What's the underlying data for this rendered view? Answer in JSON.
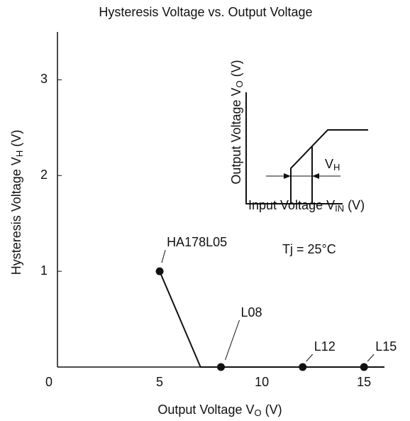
{
  "chart_data": {
    "type": "line",
    "title": "Hysteresis Voltage vs. Output Voltage",
    "x_label": [
      "Output Voltage  V",
      "O",
      "  (V)"
    ],
    "y_label": [
      "Hysteresis Voltage  V",
      "H",
      "  (V)"
    ],
    "x": [
      5,
      7,
      8,
      12,
      15,
      16
    ],
    "series": [
      {
        "color": "#111111",
        "values": [
          1,
          0,
          0,
          0,
          0,
          0
        ]
      }
    ],
    "points": [
      {
        "x": 5,
        "y": 1,
        "label": "HA178L05"
      },
      {
        "x": 8,
        "y": 0,
        "label": "L08"
      },
      {
        "x": 12,
        "y": 0,
        "label": "L12"
      },
      {
        "x": 15,
        "y": 0,
        "label": "L15"
      }
    ],
    "xlim": [
      0,
      16
    ],
    "xticks": [
      0,
      5,
      10,
      15
    ],
    "ylim": [
      0,
      3.5
    ],
    "yticks": [
      1,
      2,
      3
    ],
    "annotation": "Tj = 25°C",
    "inset": {
      "y_label": [
        "Output Voltage V",
        "O",
        " (V)"
      ],
      "x_label": [
        "Input Voltage V",
        "IN",
        " (V)"
      ],
      "vh": [
        "V",
        "H"
      ]
    }
  }
}
